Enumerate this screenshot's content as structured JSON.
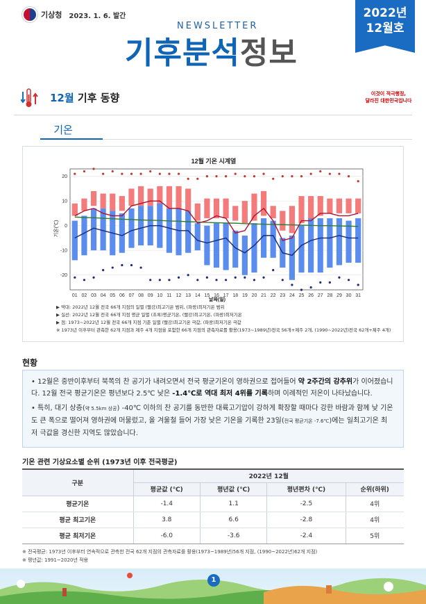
{
  "header": {
    "agency": "기상청",
    "pub_date": "2023. 1. 6. 발간",
    "newsletter_label": "NEWSLETTER",
    "title_part1": "기후분석",
    "title_part2": "정보",
    "issue_year": "2022년",
    "issue_month": "12월호"
  },
  "section": {
    "title_month": "12월",
    "title_rest": " 기후 동향",
    "slogan_line1": "이것이 적극행정,",
    "slogan_line2": "달라진 대한민국입니다",
    "subtab": "기온"
  },
  "chart_data": {
    "type": "bar",
    "title": "12월 기온 시계열",
    "xlabel": "날짜(일)",
    "ylabel": "기온(℃)",
    "ylim": [
      -26,
      23
    ],
    "yticks": [
      20,
      10,
      0,
      -10,
      -20
    ],
    "categories": [
      "01",
      "02",
      "03",
      "04",
      "05",
      "06",
      "07",
      "08",
      "09",
      "10",
      "11",
      "12",
      "13",
      "14",
      "15",
      "16",
      "17",
      "18",
      "19",
      "20",
      "21",
      "22",
      "23",
      "24",
      "25",
      "26",
      "27",
      "28",
      "29",
      "30",
      "31"
    ],
    "series": [
      {
        "name": "일별 최고기온 범위",
        "color": "#f47b7b",
        "low": [
          4,
          6,
          8,
          7,
          6,
          6,
          8,
          8,
          8,
          8,
          7,
          7,
          6,
          2,
          3,
          3,
          3,
          2,
          1,
          2,
          4,
          3,
          -2,
          -3,
          1,
          3,
          4,
          5,
          5,
          5,
          5
        ],
        "high": [
          9,
          11,
          14,
          13,
          13,
          12,
          15,
          16,
          15,
          16,
          16,
          16,
          15,
          9,
          11,
          11,
          11,
          8,
          10,
          13,
          14,
          8,
          6,
          8,
          12,
          12,
          12,
          11,
          11,
          11,
          11
        ]
      },
      {
        "name": "일별 최저기온 범위",
        "color": "#5b8dee",
        "low": [
          -14,
          -12,
          -10,
          -10,
          -12,
          -11,
          -9,
          -8,
          -8,
          -9,
          -11,
          -12,
          -11,
          -10,
          -16,
          -17,
          -18,
          -17,
          -20,
          -19,
          -13,
          -13,
          -17,
          -22,
          -19,
          -19,
          -19,
          -17,
          -16,
          -15,
          -15
        ],
        "high": [
          2,
          4,
          7,
          7,
          6,
          5,
          7,
          8,
          8,
          9,
          7,
          7,
          6,
          1,
          0,
          1,
          1,
          -2,
          -4,
          1,
          3,
          2,
          -5,
          -4,
          0,
          3,
          3,
          3,
          3,
          2,
          3
        ]
      }
    ],
    "lines": [
      {
        "name": "평균기온 평년",
        "color": "#2e7d32",
        "values": [
          3.5,
          3.3,
          3.2,
          3.0,
          2.8,
          2.6,
          2.5,
          2.3,
          2.2,
          2.1,
          1.9,
          1.8,
          1.6,
          1.5,
          1.3,
          1.2,
          1.1,
          1.0,
          0.8,
          0.7,
          0.6,
          0.5,
          0.4,
          0.3,
          0.2,
          0.1,
          0.0,
          0.0,
          -0.1,
          -0.2,
          -0.3
        ]
      },
      {
        "name": "최고기온 평균",
        "color": "#b0102c",
        "values": [
          4,
          6,
          7,
          5,
          4,
          4,
          8,
          9,
          10,
          10,
          7,
          7,
          6,
          1,
          2,
          4,
          3,
          -3,
          -2,
          4,
          7,
          2,
          -6,
          -5,
          2,
          2,
          5,
          5,
          4,
          4,
          5
        ]
      },
      {
        "name": "최저기온 평균",
        "color": "#1b2a7a",
        "values": [
          -5,
          -3,
          -1,
          -2,
          -3,
          -4,
          -2,
          -1,
          0,
          0,
          -1,
          -2,
          -2,
          -6,
          -7,
          -6,
          -5,
          -9,
          -11,
          -8,
          -4,
          -4,
          -11,
          -12,
          -8,
          -6,
          -5,
          -5,
          -4,
          -5,
          -5
        ]
      }
    ],
    "extremes_high": [
      21,
      22,
      23,
      21,
      22,
      21,
      21,
      21,
      22,
      21,
      21,
      21,
      19,
      19,
      20,
      20,
      20,
      21,
      20,
      20,
      21,
      19,
      20,
      20,
      20,
      21,
      22,
      21,
      21,
      20,
      18
    ],
    "extremes_low": [
      -21,
      -22,
      -21,
      -18,
      -17,
      -16,
      -16,
      -17,
      -22,
      -22,
      -22,
      -21,
      -20,
      -22,
      -21,
      -22,
      -22,
      -21,
      -21,
      -22,
      -21,
      -18,
      -22,
      -24,
      -26,
      -25,
      -23,
      -23,
      -21,
      -22,
      -24
    ]
  },
  "chart_notes": [
    "▶ 막대: 2022년 12월 전국 66개 지점의 일별 (빨강)최고기온 범위, (파랑)최저기온 범위",
    "▶ 실선: 2022년 12월 전국 66개 지점 평균 일별 (초록)평균기온, (빨강)최고기온, (파랑)최저기온",
    "▶ 점: 1973~2022년 12월 전국 66개 지점 기준 일별 (빨강)최고기온 극값, (파랑)최저기온 극값",
    "※ 1973년 이후부터 관측한 62개 지점과 제주 4개 지점을 포함한 66개 지점의 관측자료를 활용(1973~1989년)전국 56개+제주 2개, (1990~2022년)전국 62개+제주 4개)"
  ],
  "status": {
    "title": "현황",
    "p1_a": "• 12월은 중반이후부터 북쪽의 찬 공기가 내려오면서 전국 평균기온이 영하권으로 접어들어 ",
    "p1_b": "약 2주간의 강추위",
    "p1_c": "가 이어졌습니다. 12월 전국 평균기온은 평년보다 2.5℃ 낮은 ",
    "p1_d": "-1.4℃로 역대 최저 4위를 기록",
    "p1_e": "하며 이례적인 저온이 나타났습니다.",
    "p2_a": "• 특히, 대기 상층(",
    "p2_small": "약 5.5km 상공",
    "p2_b": ") -40℃ 이하의 찬 공기를 동반한 대륙고기압이 강하게 확장할 때마다 강한 바람과 함께 낮 기온도 큰 폭으로 떨어져 영하권에 머물렀고, 올 겨울철 들어 가장 낮은 기온을 기록한 23일(",
    "p2_small2": "전국 평균기온 -7.6℃",
    "p2_c": ")에는 일최고기온 최저 극값을 경신한 지역도 많았습니다."
  },
  "table": {
    "title": "기온 관련 기상요소별 순위 (1973년 이후 전국평균)",
    "col_group": "구분",
    "period": "2022년 12월",
    "headers": [
      "평균값 (℃)",
      "평년값 (℃)",
      "평년편차 (℃)",
      "순위(하위)"
    ],
    "rows": [
      {
        "label": "평균기온",
        "cells": [
          "-1.4",
          "1.1",
          "-2.5",
          "4위"
        ]
      },
      {
        "label": "평균 최고기온",
        "cells": [
          "3.8",
          "6.6",
          "-2.8",
          "4위"
        ]
      },
      {
        "label": "평균 최저기온",
        "cells": [
          "-6.0",
          "-3.6",
          "-2.4",
          "5위"
        ]
      }
    ]
  },
  "footnotes": [
    "※ 전국평균: 1973년 이후부터 연속적으로 관측한 전국 62개 지점의 관측자료를 활용(1973~1989년)56개 지점, (1990~2022년)62개 지점)",
    "※ 평년값: 1991~2020년 적용"
  ],
  "page_number": "1"
}
